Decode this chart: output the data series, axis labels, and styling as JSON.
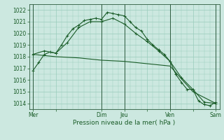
{
  "background_color": "#cce8e0",
  "plot_bg_color": "#cce8e0",
  "grid_color": "#99ccbb",
  "line_color": "#1a5c28",
  "xlabel": "Pression niveau de la mer( hPa )",
  "ylim": [
    1013.5,
    1022.5
  ],
  "yticks": [
    1014,
    1015,
    1016,
    1017,
    1018,
    1019,
    1020,
    1021,
    1022
  ],
  "xtick_labels": [
    "Mer",
    "",
    "Dim",
    "Jeu",
    "",
    "Ven",
    "",
    "Sam"
  ],
  "xtick_positions": [
    0,
    24,
    72,
    96,
    120,
    144,
    168,
    192
  ],
  "vlines": [
    0,
    72,
    96,
    144,
    192
  ],
  "xlim": [
    -4,
    196
  ],
  "line1_x": [
    0,
    6,
    12,
    18,
    24,
    30,
    36,
    42,
    48,
    54,
    60,
    66,
    72,
    78,
    84,
    90,
    96,
    102,
    108,
    114,
    120,
    126,
    132,
    138,
    144,
    150,
    156,
    162,
    168,
    174,
    180,
    186,
    192
  ],
  "line1_y": [
    1016.8,
    1017.5,
    1018.2,
    1018.4,
    1018.3,
    1019.0,
    1019.8,
    1020.4,
    1020.7,
    1021.1,
    1021.2,
    1021.3,
    1021.2,
    1021.8,
    1021.7,
    1021.6,
    1021.5,
    1021.0,
    1020.5,
    1020.2,
    1019.5,
    1019.0,
    1018.6,
    1018.2,
    1017.6,
    1016.5,
    1015.8,
    1015.2,
    1015.2,
    1014.2,
    1013.9,
    1013.8,
    1014.1
  ],
  "line2_x": [
    0,
    12,
    24,
    36,
    48,
    60,
    72,
    84,
    96,
    108,
    120,
    132,
    144,
    156,
    168,
    180,
    192
  ],
  "line2_y": [
    1018.2,
    1018.5,
    1018.3,
    1019.2,
    1020.5,
    1021.0,
    1021.0,
    1021.3,
    1020.8,
    1020.0,
    1019.3,
    1018.5,
    1017.6,
    1016.2,
    1015.2,
    1014.1,
    1014.0
  ],
  "line3_x": [
    0,
    24,
    48,
    72,
    96,
    120,
    144,
    168,
    192
  ],
  "line3_y": [
    1018.2,
    1018.0,
    1017.9,
    1017.7,
    1017.6,
    1017.4,
    1017.2,
    1015.0,
    1014.0
  ]
}
